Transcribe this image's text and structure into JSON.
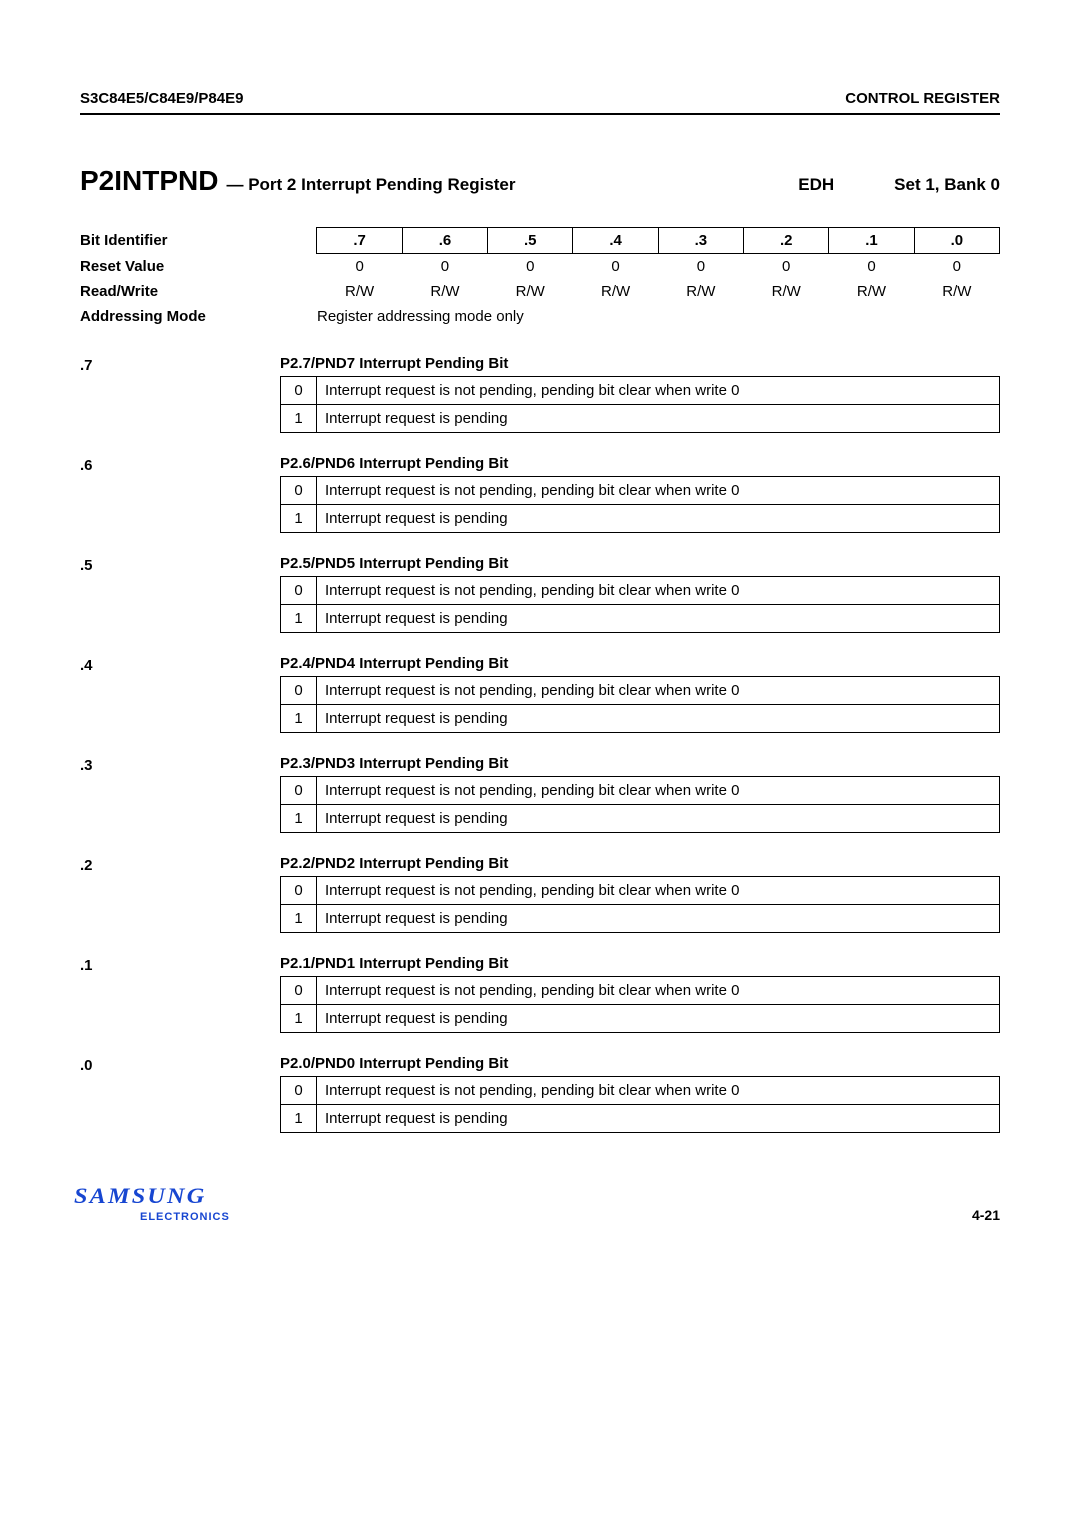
{
  "header": {
    "left": "S3C84E5/C84E9/P84E9",
    "right": "CONTROL REGISTER"
  },
  "title": {
    "name": "P2INTPND",
    "desc": "— Port 2 Interrupt Pending Register",
    "addr": "EDH",
    "bank": "Set 1, Bank 0"
  },
  "overview": {
    "labels": {
      "bitIdentifier": "Bit Identifier",
      "resetValue": "Reset Value",
      "readWrite": "Read/Write",
      "addressingMode": "Addressing Mode"
    },
    "bits": [
      ".7",
      ".6",
      ".5",
      ".4",
      ".3",
      ".2",
      ".1",
      ".0"
    ],
    "reset": [
      "0",
      "0",
      "0",
      "0",
      "0",
      "0",
      "0",
      "0"
    ],
    "rw": [
      "R/W",
      "R/W",
      "R/W",
      "R/W",
      "R/W",
      "R/W",
      "R/W",
      "R/W"
    ],
    "addressingModeText": "Register addressing mode only"
  },
  "bitDefs": [
    {
      "label": ".7",
      "title": "P2.7/PND7 Interrupt Pending Bit",
      "rows": [
        {
          "v": "0",
          "d": "Interrupt request is not pending, pending bit clear when write 0"
        },
        {
          "v": "1",
          "d": "Interrupt request is pending"
        }
      ]
    },
    {
      "label": ".6",
      "title": "P2.6/PND6 Interrupt Pending Bit",
      "rows": [
        {
          "v": "0",
          "d": "Interrupt request is not pending, pending bit clear when write 0"
        },
        {
          "v": "1",
          "d": "Interrupt request is pending"
        }
      ]
    },
    {
      "label": ".5",
      "title": "P2.5/PND5 Interrupt Pending Bit",
      "rows": [
        {
          "v": "0",
          "d": "Interrupt request is not pending, pending bit clear when write 0"
        },
        {
          "v": "1",
          "d": "Interrupt request is pending"
        }
      ]
    },
    {
      "label": ".4",
      "title": "P2.4/PND4 Interrupt Pending Bit",
      "rows": [
        {
          "v": "0",
          "d": "Interrupt request is not pending, pending bit clear when write 0"
        },
        {
          "v": "1",
          "d": "Interrupt request is pending"
        }
      ]
    },
    {
      "label": ".3",
      "title": "P2.3/PND3 Interrupt Pending Bit",
      "rows": [
        {
          "v": "0",
          "d": "Interrupt request is not pending, pending bit clear when write 0"
        },
        {
          "v": "1",
          "d": "Interrupt request is pending"
        }
      ]
    },
    {
      "label": ".2",
      "title": "P2.2/PND2 Interrupt Pending Bit",
      "rows": [
        {
          "v": "0",
          "d": "Interrupt request is not pending, pending bit clear when write 0"
        },
        {
          "v": "1",
          "d": "Interrupt request is pending"
        }
      ]
    },
    {
      "label": ".1",
      "title": "P2.1/PND1 Interrupt Pending Bit",
      "rows": [
        {
          "v": "0",
          "d": "Interrupt request is not pending, pending bit clear when write 0"
        },
        {
          "v": "1",
          "d": "Interrupt request is pending"
        }
      ]
    },
    {
      "label": ".0",
      "title": "P2.0/PND0 Interrupt Pending Bit",
      "rows": [
        {
          "v": "0",
          "d": "Interrupt request is not pending, pending bit clear when write 0"
        },
        {
          "v": "1",
          "d": "Interrupt request is pending"
        }
      ]
    }
  ],
  "footer": {
    "logo": "SAMSUNG",
    "sub": "ELECTRONICS",
    "page": "4-21"
  }
}
